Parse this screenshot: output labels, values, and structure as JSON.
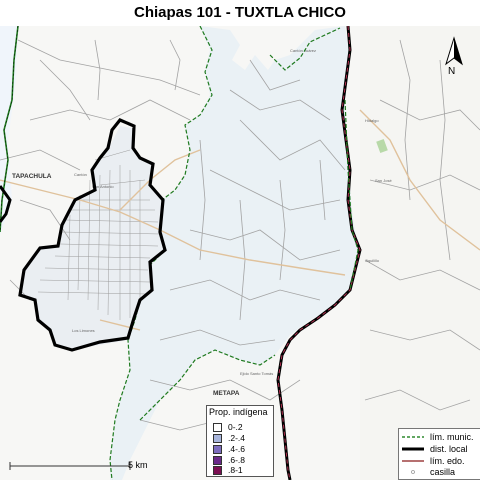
{
  "title": "Chiapas 101 - TUXTLA CHICO",
  "north_label": "N",
  "scale_label": "5 km",
  "place_labels": {
    "tapachula": "TAPACHULA",
    "metapa": "METAPA"
  },
  "legend": {
    "title": "Prop. indígena",
    "items": [
      {
        "label": "0-.2",
        "color": "#ffffff"
      },
      {
        "label": ".2-.4",
        "color": "#a9b6dd"
      },
      {
        "label": ".4-.6",
        "color": "#7d6dbf"
      },
      {
        "label": ".6-.8",
        "color": "#6a2a8a"
      },
      {
        "label": ".8-1",
        "color": "#7a0f52"
      }
    ]
  },
  "line_legend": [
    {
      "label": "lím. munic.",
      "style": "munic",
      "color": "#2f8a2f"
    },
    {
      "label": "dist. local",
      "style": "local",
      "color": "#000000"
    },
    {
      "label": "lím. edo.",
      "style": "edo",
      "color": "#8b1a1a"
    },
    {
      "label": "casilla",
      "style": "casilla",
      "color": "#999999"
    }
  ],
  "colors": {
    "district_fill": "#eef3f6",
    "left_fill": "#f2f6fb",
    "munic_line": "#1f7a1f",
    "state_line": "#6a1030",
    "road": "#e6c9a3",
    "gray_road": "#9a9a9a"
  }
}
